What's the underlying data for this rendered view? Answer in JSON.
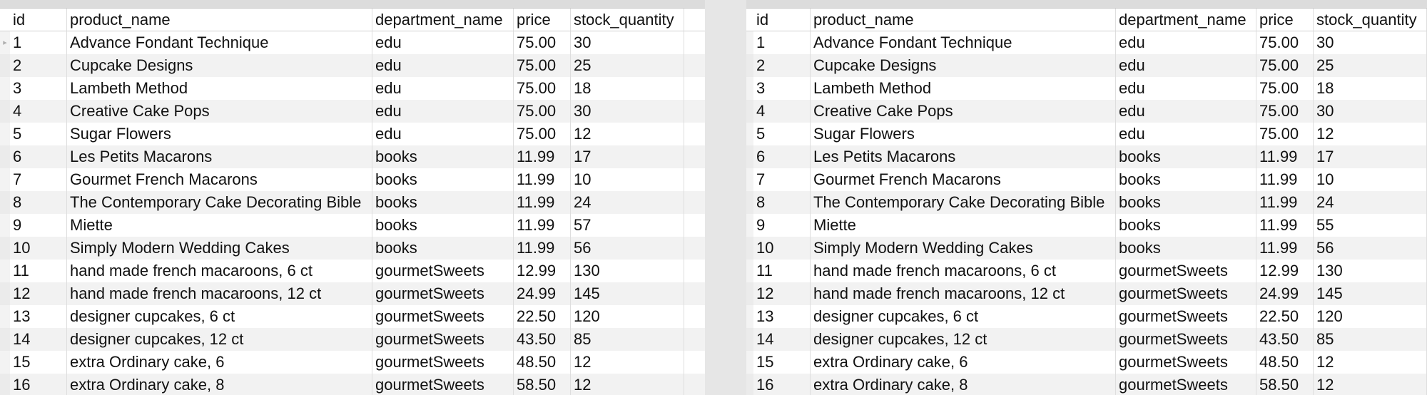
{
  "left_table": {
    "columns": [
      "id",
      "product_name",
      "department_name",
      "price",
      "stock_quantity"
    ],
    "rows": [
      [
        "1",
        "Advance Fondant Technique",
        "edu",
        "75.00",
        "30"
      ],
      [
        "2",
        "Cupcake Designs",
        "edu",
        "75.00",
        "25"
      ],
      [
        "3",
        "Lambeth Method",
        "edu",
        "75.00",
        "18"
      ],
      [
        "4",
        "Creative Cake Pops",
        "edu",
        "75.00",
        "30"
      ],
      [
        "5",
        "Sugar Flowers",
        "edu",
        "75.00",
        "12"
      ],
      [
        "6",
        "Les Petits Macarons",
        "books",
        "11.99",
        "17"
      ],
      [
        "7",
        "Gourmet French Macarons",
        "books",
        "11.99",
        "10"
      ],
      [
        "8",
        "The Contemporary Cake Decorating Bible",
        "books",
        "11.99",
        "24"
      ],
      [
        "9",
        "Miette",
        "books",
        "11.99",
        "57"
      ],
      [
        "10",
        "Simply Modern Wedding Cakes",
        "books",
        "11.99",
        "56"
      ],
      [
        "11",
        "hand made french macaroons, 6 ct",
        "gourmetSweets",
        "12.99",
        "130"
      ],
      [
        "12",
        "hand made french macaroons, 12 ct",
        "gourmetSweets",
        "24.99",
        "145"
      ],
      [
        "13",
        "designer cupcakes, 6 ct",
        "gourmetSweets",
        "22.50",
        "120"
      ],
      [
        "14",
        "designer cupcakes, 12 ct",
        "gourmetSweets",
        "43.50",
        "85"
      ],
      [
        "15",
        "extra Ordinary cake, 6",
        "gourmetSweets",
        "48.50",
        "12"
      ],
      [
        "16",
        "extra Ordinary cake, 8",
        "gourmetSweets",
        "58.50",
        "12"
      ]
    ]
  },
  "right_table": {
    "columns": [
      "id",
      "product_name",
      "department_name",
      "price",
      "stock_quantity"
    ],
    "rows": [
      [
        "1",
        "Advance Fondant Technique",
        "edu",
        "75.00",
        "30"
      ],
      [
        "2",
        "Cupcake Designs",
        "edu",
        "75.00",
        "25"
      ],
      [
        "3",
        "Lambeth Method",
        "edu",
        "75.00",
        "18"
      ],
      [
        "4",
        "Creative Cake Pops",
        "edu",
        "75.00",
        "30"
      ],
      [
        "5",
        "Sugar Flowers",
        "edu",
        "75.00",
        "12"
      ],
      [
        "6",
        "Les Petits Macarons",
        "books",
        "11.99",
        "17"
      ],
      [
        "7",
        "Gourmet French Macarons",
        "books",
        "11.99",
        "10"
      ],
      [
        "8",
        "The Contemporary Cake Decorating Bible",
        "books",
        "11.99",
        "24"
      ],
      [
        "9",
        "Miette",
        "books",
        "11.99",
        "55"
      ],
      [
        "10",
        "Simply Modern Wedding Cakes",
        "books",
        "11.99",
        "56"
      ],
      [
        "11",
        "hand made french macaroons, 6 ct",
        "gourmetSweets",
        "12.99",
        "130"
      ],
      [
        "12",
        "hand made french macaroons, 12 ct",
        "gourmetSweets",
        "24.99",
        "145"
      ],
      [
        "13",
        "designer cupcakes, 6 ct",
        "gourmetSweets",
        "22.50",
        "120"
      ],
      [
        "14",
        "designer cupcakes, 12 ct",
        "gourmetSweets",
        "43.50",
        "85"
      ],
      [
        "15",
        "extra Ordinary cake, 6",
        "gourmetSweets",
        "48.50",
        "12"
      ],
      [
        "16",
        "extra Ordinary cake, 8",
        "gourmetSweets",
        "58.50",
        "12"
      ]
    ]
  },
  "selection_marker": "▸"
}
